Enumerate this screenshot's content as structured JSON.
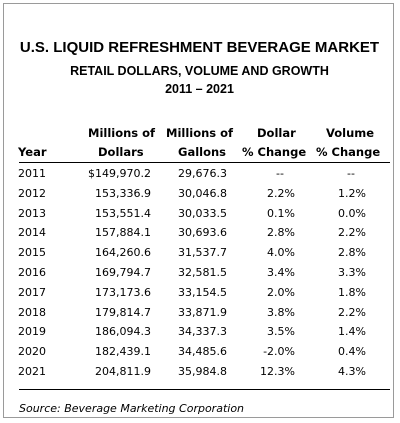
{
  "title": "U.S. LIQUID REFRESHMENT BEVERAGE MARKET",
  "subtitle": "RETAIL DOLLARS, VOLUME AND GROWTH",
  "period": "2011 – 2021",
  "headers": {
    "year": "Year",
    "dollars_top": "Millions of",
    "dollars_bottom": "Dollars",
    "gallons_top": "Millions of",
    "gallons_bottom": "Gallons",
    "dollar_pct_top": "Dollar",
    "dollar_pct_bottom": "% Change",
    "volume_pct_top": "Volume",
    "volume_pct_bottom": "% Change"
  },
  "rows": [
    {
      "year": "2011",
      "dollars": "$149,970.2",
      "gallons": "29,676.3",
      "dollar_pct": "--",
      "volume_pct": "--"
    },
    {
      "year": "2012",
      "dollars": "153,336.9",
      "gallons": "30,046.8",
      "dollar_pct": "2.2%",
      "volume_pct": "1.2%"
    },
    {
      "year": "2013",
      "dollars": "153,551.4",
      "gallons": "30,033.5",
      "dollar_pct": "0.1%",
      "volume_pct": "0.0%"
    },
    {
      "year": "2014",
      "dollars": "157,884.1",
      "gallons": "30,693.6",
      "dollar_pct": "2.8%",
      "volume_pct": "2.2%"
    },
    {
      "year": "2015",
      "dollars": "164,260.6",
      "gallons": "31,537.7",
      "dollar_pct": "4.0%",
      "volume_pct": "2.8%"
    },
    {
      "year": "2016",
      "dollars": "169,794.7",
      "gallons": "32,581.5",
      "dollar_pct": "3.4%",
      "volume_pct": "3.3%"
    },
    {
      "year": "2017",
      "dollars": "173,173.6",
      "gallons": "33,154.5",
      "dollar_pct": "2.0%",
      "volume_pct": "1.8%"
    },
    {
      "year": "2018",
      "dollars": "179,814.7",
      "gallons": "33,871.9",
      "dollar_pct": "3.8%",
      "volume_pct": "2.2%"
    },
    {
      "year": "2019",
      "dollars": "186,094.3",
      "gallons": "34,337.3",
      "dollar_pct": "3.5%",
      "volume_pct": "1.4%"
    },
    {
      "year": "2020",
      "dollars": "182,439.1",
      "gallons": "34,485.6",
      "dollar_pct": "-2.0%",
      "volume_pct": "0.4%"
    },
    {
      "year": "2021",
      "dollars": "204,811.9",
      "gallons": "35,984.8",
      "dollar_pct": "12.3%",
      "volume_pct": "4.3%"
    }
  ],
  "source": "Source:  Beverage Marketing Corporation"
}
